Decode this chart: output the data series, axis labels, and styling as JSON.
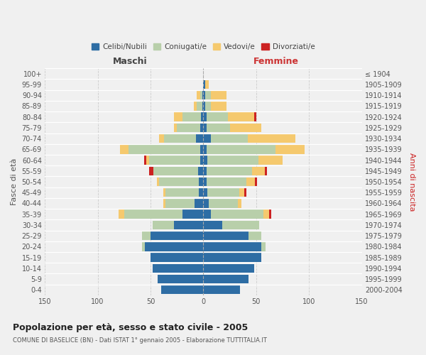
{
  "age_groups": [
    "0-4",
    "5-9",
    "10-14",
    "15-19",
    "20-24",
    "25-29",
    "30-34",
    "35-39",
    "40-44",
    "45-49",
    "50-54",
    "55-59",
    "60-64",
    "65-69",
    "70-74",
    "75-79",
    "80-84",
    "85-89",
    "90-94",
    "95-99",
    "100+"
  ],
  "birth_years": [
    "2000-2004",
    "1995-1999",
    "1990-1994",
    "1985-1989",
    "1980-1984",
    "1975-1979",
    "1970-1974",
    "1965-1969",
    "1960-1964",
    "1955-1959",
    "1950-1954",
    "1945-1949",
    "1940-1944",
    "1935-1939",
    "1930-1934",
    "1925-1929",
    "1920-1924",
    "1915-1919",
    "1910-1914",
    "1905-1909",
    "≤ 1904"
  ],
  "colors": {
    "celibi": "#2e6da4",
    "coniugati": "#b8cfaa",
    "vedovi": "#f5c96e",
    "divorziati": "#cc2222"
  },
  "males": {
    "celibi": [
      40,
      43,
      48,
      50,
      55,
      50,
      28,
      20,
      8,
      4,
      4,
      5,
      3,
      3,
      7,
      3,
      2,
      1,
      1,
      0,
      0
    ],
    "coniugati": [
      0,
      0,
      0,
      0,
      3,
      8,
      20,
      55,
      28,
      32,
      38,
      42,
      48,
      68,
      30,
      22,
      18,
      5,
      2,
      0,
      0
    ],
    "vedovi": [
      0,
      0,
      0,
      0,
      0,
      0,
      0,
      5,
      2,
      2,
      2,
      0,
      3,
      8,
      5,
      3,
      8,
      3,
      3,
      0,
      0
    ],
    "divorziati": [
      0,
      0,
      0,
      0,
      0,
      0,
      0,
      0,
      0,
      0,
      0,
      4,
      2,
      0,
      0,
      0,
      0,
      0,
      0,
      0,
      0
    ]
  },
  "females": {
    "nubili": [
      35,
      43,
      48,
      55,
      55,
      43,
      18,
      7,
      5,
      4,
      3,
      3,
      4,
      3,
      7,
      3,
      3,
      2,
      2,
      2,
      0
    ],
    "coniugate": [
      0,
      0,
      0,
      0,
      4,
      12,
      35,
      50,
      28,
      30,
      38,
      43,
      48,
      65,
      35,
      22,
      20,
      5,
      5,
      0,
      0
    ],
    "vedove": [
      0,
      0,
      0,
      0,
      0,
      0,
      0,
      5,
      3,
      5,
      8,
      12,
      23,
      28,
      45,
      30,
      25,
      15,
      15,
      3,
      0
    ],
    "divorziate": [
      0,
      0,
      0,
      0,
      0,
      0,
      0,
      2,
      0,
      2,
      2,
      2,
      0,
      0,
      0,
      0,
      2,
      0,
      0,
      0,
      0
    ]
  },
  "title": "Popolazione per età, sesso e stato civile - 2005",
  "subtitle": "COMUNE DI BASELICE (BN) - Dati ISTAT 1° gennaio 2005 - Elaborazione TUTTITALIA.IT",
  "xlabel_left": "Maschi",
  "xlabel_right": "Femmine",
  "ylabel_left": "Fasce di età",
  "ylabel_right": "Anni di nascita",
  "xlim": 150,
  "legend_labels": [
    "Celibi/Nubili",
    "Coniugati/e",
    "Vedovi/e",
    "Divorziati/e"
  ],
  "bg_color": "#f0f0f0",
  "plot_bg": "#f0f0f0",
  "grid_color": "#cccccc"
}
